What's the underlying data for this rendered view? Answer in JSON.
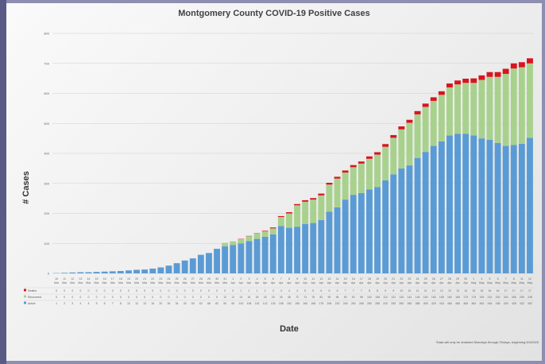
{
  "chart_data": {
    "type": "bar",
    "stacked": true,
    "title": "Montgomery County COVID-19 Positive Cases",
    "ylabel": "# Cases",
    "xlabel": "Date",
    "ylim": [
      0,
      800
    ],
    "yticks": [
      0,
      100,
      200,
      300,
      400,
      500,
      600,
      700,
      800
    ],
    "grid": true,
    "legend": "table-left",
    "note": "*Data will only be obtained Mondays through Fridays, beginning 5/4/2020",
    "categories": [
      "10 Mar",
      "11 Mar",
      "12 Mar",
      "13 Mar",
      "14 Mar",
      "15 Mar",
      "16 Mar",
      "17 Mar",
      "18 Mar",
      "19 Mar",
      "20 Mar",
      "21 Mar",
      "22 Mar",
      "23 Mar",
      "24 Mar",
      "25 Mar",
      "26 Mar",
      "27 Mar",
      "28 Mar",
      "29 Mar",
      "30 Mar",
      "31 Mar",
      "1 Apr",
      "2 Apr",
      "3 Apr",
      "4 Apr",
      "5 Apr",
      "6 Apr",
      "7 Apr",
      "8 Apr",
      "9 Apr",
      "10 Apr",
      "11 Apr",
      "12 Apr",
      "13 Apr",
      "14 Apr",
      "15 Apr",
      "16 Apr",
      "17 Apr",
      "18 Apr",
      "19 Apr",
      "20 Apr",
      "21 Apr",
      "22 Apr",
      "23 Apr",
      "24 Apr",
      "25 Apr",
      "26 Apr",
      "27 Apr",
      "28 Apr",
      "29 Apr",
      "30 Apr",
      "1 May",
      "4 May",
      "5 May",
      "6 May",
      "7 May",
      "8 May",
      "11 May",
      "12 May"
    ],
    "series": [
      {
        "name": "Active",
        "color": "#5b9bd5",
        "values": [
          1,
          2,
          3,
          4,
          4,
          5,
          6,
          7,
          8,
          10,
          12,
          13,
          16,
          20,
          26,
          34,
          43,
          50,
          62,
          68,
          82,
          90,
          95,
          100,
          108,
          115,
          122,
          130,
          158,
          152,
          155,
          165,
          168,
          178,
          206,
          220,
          246,
          262,
          268,
          280,
          288,
          310,
          330,
          350,
          360,
          385,
          405,
          425,
          440,
          460,
          465,
          465,
          460,
          450,
          445,
          435,
          425,
          428,
          432,
          452
        ],
        "label_values": [
          1,
          2,
          3,
          4,
          4,
          5,
          6,
          7,
          8,
          10,
          12,
          13,
          16,
          20,
          26,
          34,
          43,
          50,
          62,
          68,
          82,
          90,
          95,
          100,
          108,
          115,
          122,
          130,
          158,
          152,
          155,
          165,
          168,
          178,
          206,
          220,
          246,
          262,
          268,
          280,
          288,
          310,
          330,
          350,
          360,
          385,
          405,
          425,
          440,
          460,
          465,
          465,
          460,
          450,
          445,
          435,
          425,
          428,
          432,
          452
        ]
      },
      {
        "name": "Recovered",
        "color": "#a9d18e",
        "values": [
          0,
          0,
          0,
          0,
          0,
          0,
          0,
          0,
          0,
          0,
          0,
          0,
          0,
          0,
          0,
          0,
          0,
          0,
          0,
          0,
          0,
          12,
          12,
          14,
          16,
          18,
          18,
          20,
          30,
          48,
          72,
          74,
          78,
          82,
          90,
          96,
          90,
          92,
          98,
          102,
          108,
          112,
          122,
          130,
          142,
          145,
          150,
          150,
          155,
          160,
          165,
          170,
          175,
          195,
          210,
          220,
          240,
          255,
          255,
          248
        ],
        "label_values": [
          0,
          0,
          0,
          0,
          0,
          0,
          0,
          0,
          0,
          0,
          0,
          0,
          0,
          0,
          0,
          0,
          0,
          0,
          0,
          0,
          0,
          12,
          12,
          14,
          16,
          18,
          18,
          20,
          30,
          48,
          72,
          74,
          78,
          82,
          90,
          96,
          90,
          92,
          98,
          102,
          108,
          112,
          122,
          130,
          142,
          145,
          150,
          150,
          155,
          160,
          165,
          170,
          175,
          195,
          210,
          220,
          240,
          255,
          255,
          248
        ]
      },
      {
        "name": "Deaths",
        "color": "#d9141e",
        "values": [
          0,
          0,
          0,
          0,
          0,
          0,
          0,
          0,
          0,
          0,
          0,
          0,
          0,
          0,
          0,
          0,
          0,
          0,
          0,
          0,
          0,
          0,
          0,
          1,
          1,
          1,
          2,
          3,
          3,
          4,
          4,
          5,
          5,
          6,
          6,
          6,
          7,
          7,
          7,
          8,
          8,
          9,
          9,
          10,
          10,
          11,
          11,
          12,
          12,
          13,
          13,
          14,
          15,
          15,
          16,
          16,
          17,
          17,
          17,
          17
        ],
        "label_values": [
          0,
          0,
          0,
          0,
          0,
          0,
          0,
          0,
          0,
          0,
          0,
          0,
          0,
          0,
          0,
          0,
          0,
          0,
          0,
          0,
          0,
          0,
          0,
          1,
          1,
          1,
          2,
          3,
          3,
          4,
          4,
          5,
          5,
          6,
          6,
          6,
          7,
          7,
          7,
          8,
          8,
          9,
          9,
          10,
          10,
          11,
          11,
          12,
          12,
          13,
          13,
          14,
          15,
          15,
          16,
          16,
          17,
          17,
          17,
          17
        ]
      }
    ]
  }
}
